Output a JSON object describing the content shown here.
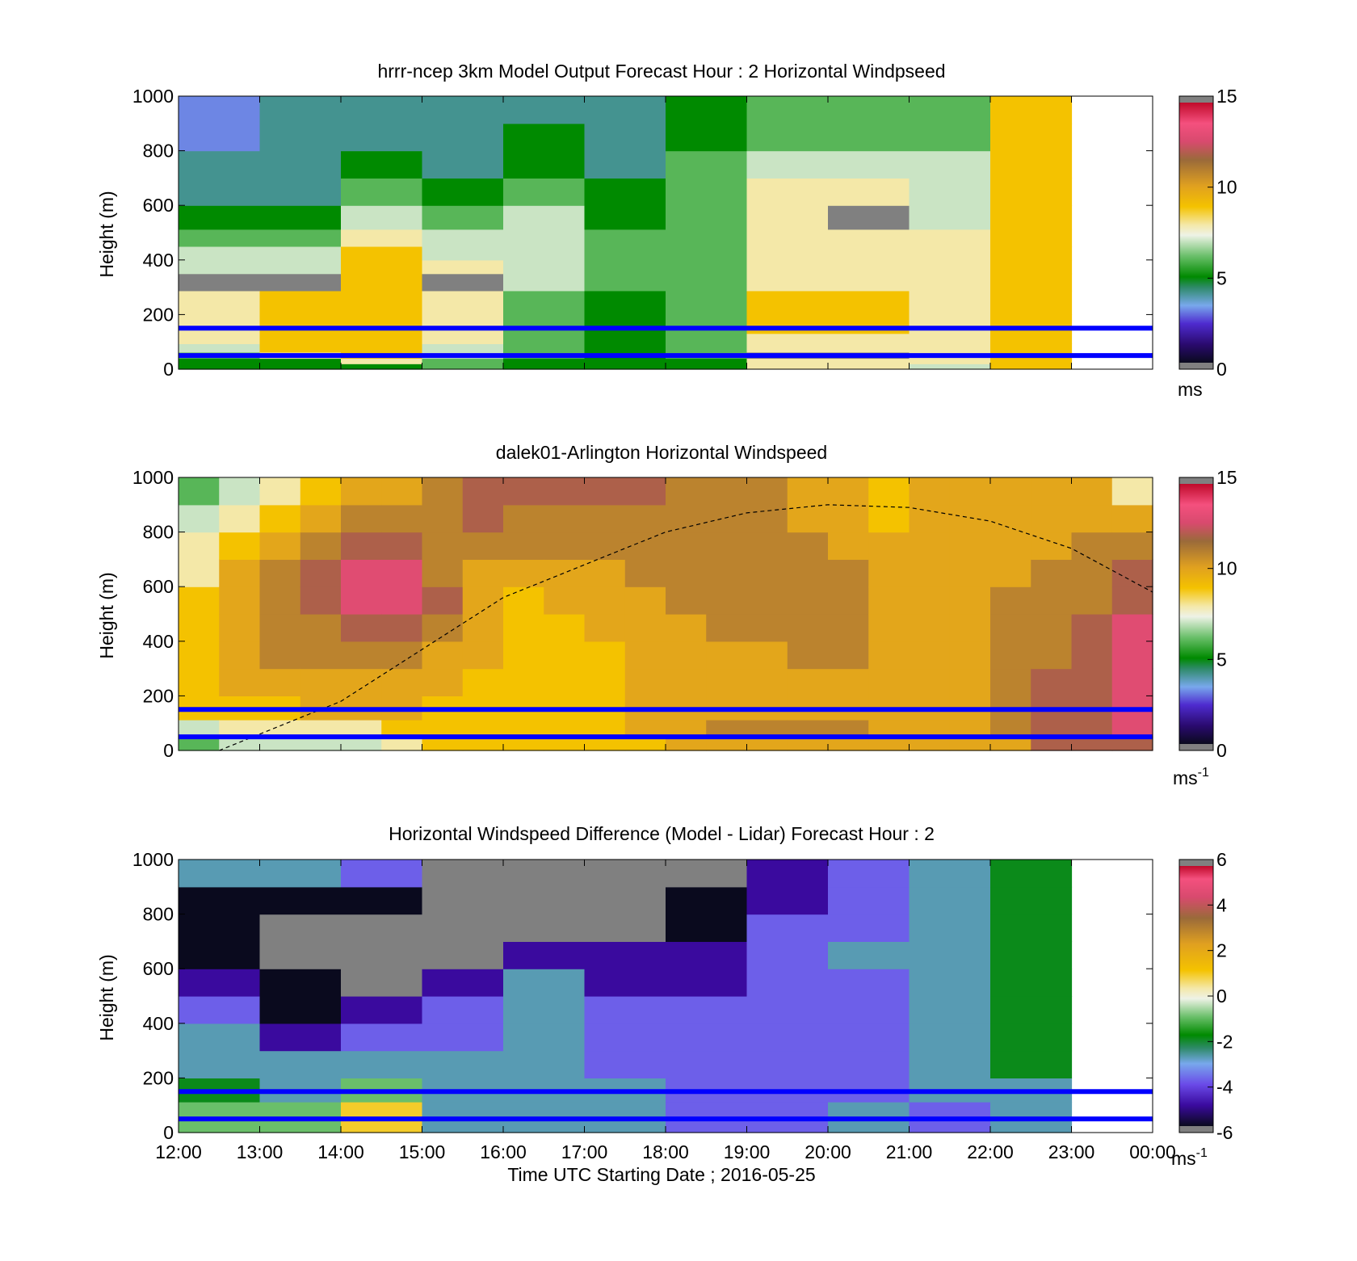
{
  "panels": [
    {
      "key": "model",
      "title": "hrrr-ncep 3km Model Output   Forecast Hour : 2 Horizontal Windpseed",
      "ylabel": "Height (m)",
      "cbar_unit": "ms"
    },
    {
      "key": "lidar",
      "title": "dalek01-Arlington  Horizontal Windspeed",
      "ylabel": "Height (m)",
      "cbar_unit": "ms",
      "cbar_unit_sup": "-1"
    },
    {
      "key": "diff",
      "title": "Horizontal Windspeed Difference (Model - Lidar) Forecast Hour : 2",
      "ylabel": "Height (m)",
      "cbar_unit": "ms",
      "cbar_unit_sup": "-1"
    }
  ],
  "xaxis": {
    "label": "Time UTC  Starting Date ; 2016-05-25",
    "ticks": [
      "12:00",
      "13:00",
      "14:00",
      "15:00",
      "16:00",
      "17:00",
      "18:00",
      "19:00",
      "20:00",
      "21:00",
      "22:00",
      "23:00",
      "00:00"
    ]
  },
  "yaxis": {
    "ticks": [
      "0",
      "200",
      "400",
      "600",
      "800",
      "1000"
    ]
  },
  "colorbars": {
    "speed": {
      "ticks": [
        "0",
        "5",
        "10",
        "15"
      ]
    },
    "diff": {
      "ticks": [
        "-6",
        "-4",
        "-2",
        "0",
        "2",
        "4",
        "6"
      ]
    }
  },
  "colors": {
    "reference_lines": "#0000ff",
    "boundary_layer_curve": "#000000",
    "no_data": "#808080"
  },
  "chart_data": [
    {
      "type": "heatmap",
      "title": "hrrr-ncep 3km Model Output   Forecast Hour : 2 Horizontal Windpseed",
      "xlabel": "",
      "ylabel": "Height (m)",
      "x_range": [
        "12:00",
        "00:00"
      ],
      "ylim": [
        0,
        1000
      ],
      "colorbar": {
        "label": "ms",
        "range": [
          0,
          15
        ]
      },
      "height_levels_m": [
        10,
        30,
        50,
        75,
        112,
        150,
        250,
        325,
        375,
        425,
        475,
        550,
        650,
        750,
        850,
        950
      ],
      "columns": [
        {
          "time": "12:00",
          "values": [
            5,
            5,
            6,
            7,
            8,
            8,
            8,
            0,
            7,
            7,
            6,
            5,
            4,
            4,
            3,
            3
          ]
        },
        {
          "time": "13:00",
          "values": [
            5,
            5,
            8,
            9,
            9,
            9,
            9,
            0,
            7,
            7,
            6,
            5,
            4,
            4,
            4,
            4
          ]
        },
        {
          "time": "14:00",
          "values": [
            5,
            8,
            9,
            9,
            9,
            9,
            9,
            9,
            9,
            9,
            8,
            7,
            6,
            5,
            4,
            4
          ]
        },
        {
          "time": "15:00",
          "values": [
            6,
            6,
            7,
            7,
            8,
            8,
            8,
            0,
            8,
            7,
            7,
            6,
            5,
            4,
            4,
            4
          ]
        },
        {
          "time": "16:00",
          "values": [
            5,
            5,
            6,
            6,
            6,
            6,
            6,
            7,
            7,
            7,
            7,
            7,
            6,
            5,
            5,
            4
          ]
        },
        {
          "time": "17:00",
          "values": [
            5,
            5,
            5,
            5,
            5,
            5,
            5,
            6,
            6,
            6,
            6,
            5,
            5,
            4,
            4,
            4
          ]
        },
        {
          "time": "18:00",
          "values": [
            5,
            5,
            6,
            6,
            6,
            6,
            6,
            6,
            6,
            6,
            6,
            6,
            6,
            6,
            5,
            5
          ]
        },
        {
          "time": "19:00",
          "values": [
            8,
            8,
            0,
            8,
            8,
            9,
            9,
            8,
            8,
            8,
            8,
            8,
            8,
            7,
            6,
            6
          ]
        },
        {
          "time": "20:00",
          "values": [
            8,
            8,
            0,
            8,
            8,
            9,
            9,
            8,
            8,
            8,
            8,
            0,
            8,
            7,
            6,
            6
          ]
        },
        {
          "time": "21:00",
          "values": [
            7,
            8,
            8,
            8,
            8,
            8,
            8,
            8,
            8,
            8,
            8,
            7,
            7,
            7,
            6,
            6
          ]
        },
        {
          "time": "22:00",
          "values": [
            9,
            9,
            9,
            9,
            9,
            9,
            9,
            9,
            9,
            9,
            9,
            9,
            9,
            9,
            9,
            9
          ]
        }
      ],
      "reference_lines_m": [
        50,
        150
      ]
    },
    {
      "type": "heatmap",
      "title": "dalek01-Arlington  Horizontal Windspeed",
      "xlabel": "",
      "ylabel": "Height (m)",
      "x_range": [
        "12:00",
        "00:00"
      ],
      "ylim": [
        0,
        1000
      ],
      "colorbar": {
        "label": "ms-1",
        "range": [
          0,
          15
        ]
      },
      "height_levels_m": [
        25,
        75,
        150,
        250,
        350,
        450,
        550,
        650,
        750,
        850,
        950
      ],
      "columns": [
        {
          "time": "12:00",
          "values": [
            6,
            7,
            9,
            9,
            9,
            9,
            9,
            8,
            8,
            7,
            6
          ]
        },
        {
          "time": "12:30",
          "values": [
            7,
            8,
            9,
            10,
            10,
            10,
            10,
            10,
            9,
            8,
            7
          ]
        },
        {
          "time": "13:00",
          "values": [
            7,
            8,
            9,
            10,
            11,
            11,
            11,
            11,
            10,
            9,
            8
          ]
        },
        {
          "time": "13:30",
          "values": [
            7,
            8,
            10,
            10,
            11,
            11,
            12,
            12,
            11,
            10,
            9
          ]
        },
        {
          "time": "14:00",
          "values": [
            7,
            8,
            10,
            10,
            11,
            12,
            13,
            13,
            12,
            11,
            10
          ]
        },
        {
          "time": "14:30",
          "values": [
            8,
            9,
            10,
            10,
            11,
            12,
            13,
            13,
            12,
            11,
            10
          ]
        },
        {
          "time": "15:00",
          "values": [
            9,
            9,
            9,
            10,
            10,
            11,
            12,
            11,
            11,
            11,
            11
          ]
        },
        {
          "time": "15:30",
          "values": [
            9,
            9,
            9,
            9,
            10,
            10,
            10,
            10,
            11,
            12,
            12
          ]
        },
        {
          "time": "16:00",
          "values": [
            9,
            9,
            9,
            9,
            9,
            9,
            9,
            10,
            11,
            11,
            12
          ]
        },
        {
          "time": "16:30",
          "values": [
            9,
            9,
            9,
            9,
            9,
            9,
            10,
            10,
            11,
            11,
            12
          ]
        },
        {
          "time": "17:00",
          "values": [
            9,
            9,
            9,
            9,
            9,
            10,
            10,
            10,
            11,
            11,
            12
          ]
        },
        {
          "time": "17:30",
          "values": [
            9,
            10,
            10,
            10,
            10,
            10,
            10,
            11,
            11,
            11,
            12
          ]
        },
        {
          "time": "18:00",
          "values": [
            10,
            10,
            10,
            10,
            10,
            10,
            11,
            11,
            11,
            11,
            11
          ]
        },
        {
          "time": "18:30",
          "values": [
            10,
            11,
            10,
            10,
            10,
            11,
            11,
            11,
            11,
            11,
            11
          ]
        },
        {
          "time": "19:00",
          "values": [
            10,
            11,
            10,
            10,
            10,
            11,
            11,
            11,
            11,
            11,
            11
          ]
        },
        {
          "time": "19:30",
          "values": [
            10,
            11,
            10,
            10,
            11,
            11,
            11,
            11,
            11,
            10,
            10
          ]
        },
        {
          "time": "20:00",
          "values": [
            10,
            11,
            10,
            10,
            11,
            11,
            11,
            11,
            10,
            10,
            10
          ]
        },
        {
          "time": "20:30",
          "values": [
            10,
            10,
            10,
            10,
            10,
            10,
            10,
            10,
            10,
            9,
            9
          ]
        },
        {
          "time": "21:00",
          "values": [
            10,
            10,
            10,
            10,
            10,
            10,
            10,
            10,
            10,
            10,
            10
          ]
        },
        {
          "time": "21:30",
          "values": [
            10,
            10,
            10,
            10,
            10,
            10,
            10,
            10,
            10,
            10,
            10
          ]
        },
        {
          "time": "22:00",
          "values": [
            10,
            11,
            11,
            11,
            11,
            11,
            11,
            10,
            10,
            10,
            10
          ]
        },
        {
          "time": "22:30",
          "values": [
            12,
            12,
            12,
            12,
            11,
            11,
            11,
            11,
            10,
            10,
            10
          ]
        },
        {
          "time": "23:00",
          "values": [
            12,
            12,
            12,
            12,
            12,
            12,
            11,
            11,
            11,
            10,
            10
          ]
        },
        {
          "time": "23:30",
          "values": [
            12,
            13,
            13,
            13,
            13,
            13,
            12,
            12,
            11,
            10,
            8
          ]
        }
      ],
      "boundary_layer_curve": {
        "style": "dashed",
        "x": [
          "12:30",
          "14:00",
          "16:00",
          "18:00",
          "19:00",
          "20:00",
          "21:00",
          "22:00",
          "23:00",
          "00:00"
        ],
        "y": [
          0,
          180,
          560,
          800,
          870,
          900,
          890,
          840,
          740,
          580
        ]
      },
      "reference_lines_m": [
        50,
        150
      ]
    },
    {
      "type": "heatmap",
      "title": "Horizontal Windspeed Difference (Model - Lidar) Forecast Hour : 2",
      "xlabel": "Time UTC  Starting Date ; 2016-05-25",
      "ylabel": "Height (m)",
      "x_range": [
        "12:00",
        "00:00"
      ],
      "ylim": [
        0,
        1000
      ],
      "colorbar": {
        "label": "ms-1",
        "range": [
          -6,
          6
        ]
      },
      "height_levels_m": [
        25,
        75,
        150,
        250,
        350,
        450,
        550,
        650,
        750,
        850,
        950
      ],
      "columns": [
        {
          "time": "12:00",
          "values": [
            -1,
            -1,
            -2,
            -3,
            -3,
            -4,
            -5,
            -6,
            -6,
            -6,
            -3
          ]
        },
        {
          "time": "13:00",
          "values": [
            -1,
            -1,
            -3,
            -3,
            -5,
            -6,
            -6,
            null,
            null,
            -6,
            -3
          ]
        },
        {
          "time": "14:00",
          "values": [
            1,
            1,
            -1,
            -3,
            -4,
            -5,
            null,
            null,
            null,
            -6,
            -4
          ]
        },
        {
          "time": "15:00",
          "values": [
            -3,
            -3,
            -3,
            -3,
            -4,
            -4,
            -5,
            null,
            null,
            null,
            null
          ]
        },
        {
          "time": "16:00",
          "values": [
            -3,
            -3,
            -3,
            -3,
            -3,
            -3,
            -3,
            -5,
            null,
            null,
            null
          ]
        },
        {
          "time": "17:00",
          "values": [
            -3,
            -3,
            -3,
            -4,
            -4,
            -4,
            -5,
            -5,
            null,
            null,
            null
          ]
        },
        {
          "time": "18:00",
          "values": [
            -4,
            -4,
            -4,
            -4,
            -4,
            -4,
            -5,
            -5,
            -6,
            -6,
            null
          ]
        },
        {
          "time": "19:00",
          "values": [
            -4,
            -4,
            -4,
            -4,
            -4,
            -4,
            -4,
            -4,
            -4,
            -5,
            -5
          ]
        },
        {
          "time": "20:00",
          "values": [
            -3,
            -3,
            -4,
            -4,
            -4,
            -4,
            -4,
            -3,
            -4,
            -4,
            -4
          ]
        },
        {
          "time": "21:00",
          "values": [
            -4,
            -4,
            -3,
            -3,
            -3,
            -3,
            -3,
            -3,
            -3,
            -3,
            -3
          ]
        },
        {
          "time": "22:00",
          "values": [
            -3,
            -3,
            -3,
            -2,
            -2,
            -2,
            -2,
            -2,
            -2,
            -2,
            -2
          ]
        }
      ],
      "reference_lines_m": [
        50,
        150
      ]
    }
  ]
}
